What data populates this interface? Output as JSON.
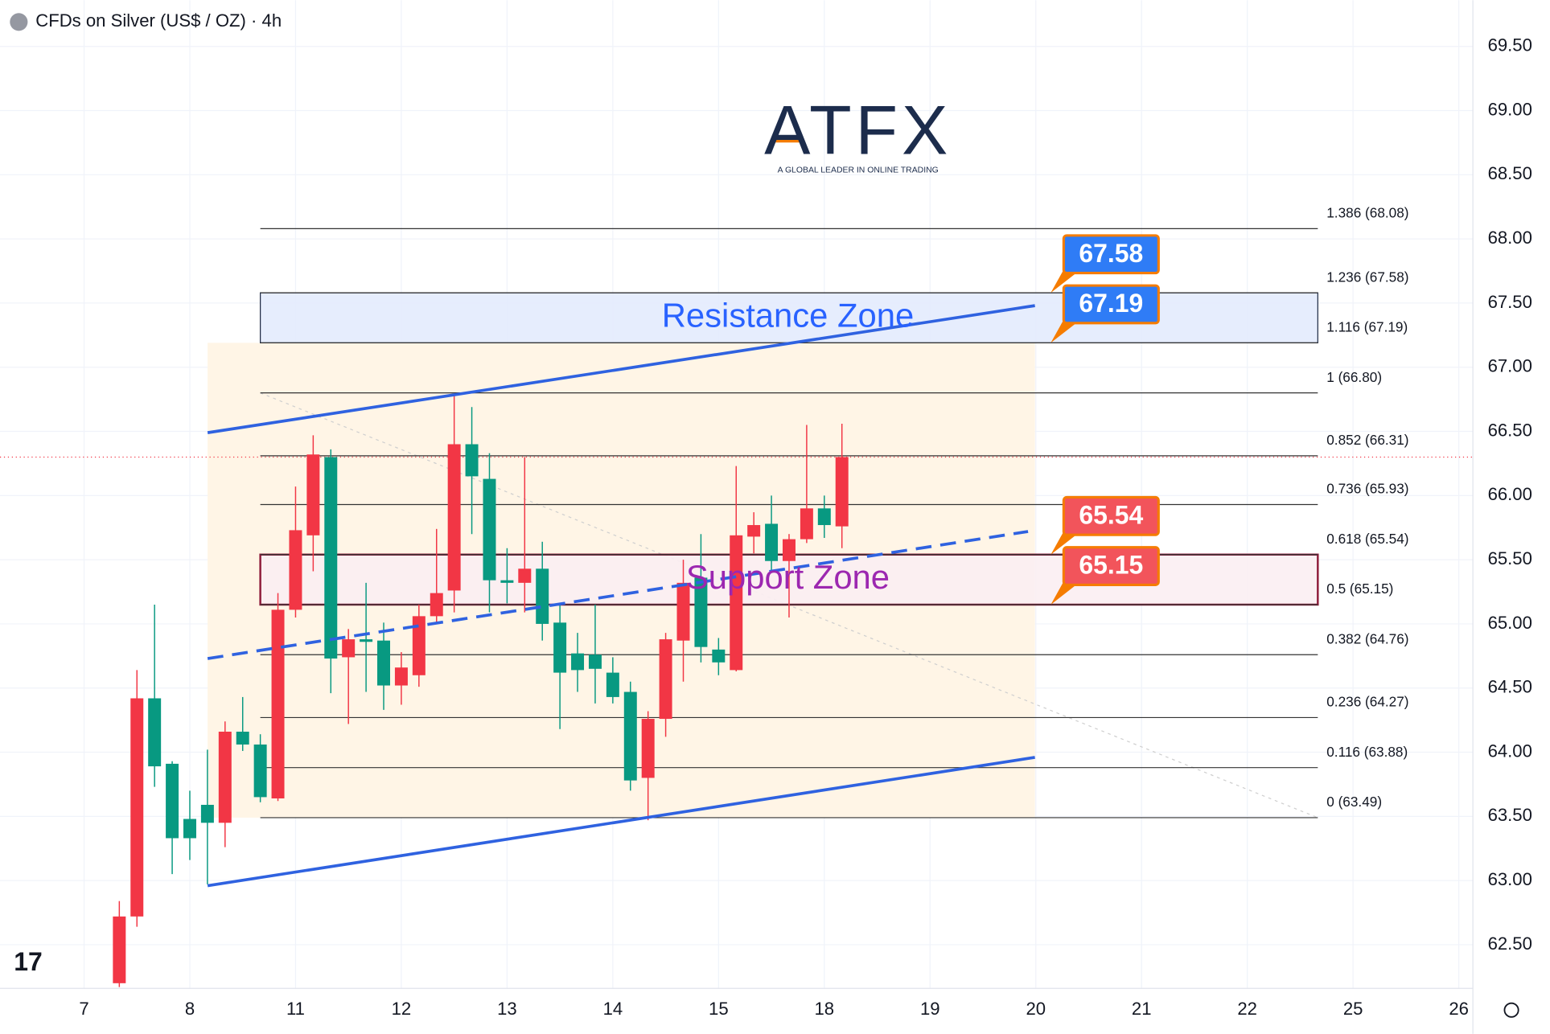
{
  "chart_data": {
    "type": "candlestick",
    "title": "CFDs on Silver (US$ / OZ) · 4h",
    "logo": {
      "name": "ATFX",
      "tagline": "A GLOBAL LEADER IN ONLINE TRADING"
    },
    "x": [
      2,
      3,
      4,
      5,
      6,
      7,
      8,
      9,
      10,
      11,
      12,
      13,
      14,
      15,
      16,
      17,
      18,
      19,
      20,
      21,
      22,
      23,
      24,
      25,
      26,
      27,
      28,
      29,
      30,
      31,
      32,
      33,
      34,
      35,
      36,
      37,
      38,
      39,
      40,
      41,
      42,
      43
    ],
    "open": [
      62.2,
      62.72,
      64.42,
      63.91,
      63.48,
      63.59,
      63.45,
      64.16,
      64.06,
      63.64,
      65.11,
      65.69,
      66.3,
      64.74,
      64.88,
      64.87,
      64.52,
      64.6,
      65.06,
      65.26,
      66.4,
      66.13,
      65.34,
      65.32,
      65.43,
      65.01,
      64.77,
      64.76,
      64.62,
      64.47,
      63.8,
      64.26,
      64.87,
      65.36,
      64.8,
      64.64,
      65.68,
      65.78,
      65.49,
      65.66,
      65.9,
      65.76
    ],
    "high": [
      62.84,
      64.64,
      65.15,
      63.93,
      63.7,
      64.02,
      64.24,
      64.43,
      64.14,
      65.24,
      66.07,
      66.47,
      66.36,
      64.96,
      65.32,
      65.01,
      64.78,
      65.15,
      65.74,
      66.78,
      66.69,
      66.33,
      65.59,
      66.3,
      65.64,
      65.15,
      64.93,
      65.15,
      64.74,
      64.55,
      64.32,
      64.93,
      65.5,
      65.7,
      64.89,
      66.23,
      65.87,
      66.0,
      65.7,
      66.55,
      66.0,
      66.56
    ],
    "low": [
      62.17,
      62.64,
      63.73,
      63.05,
      63.16,
      62.97,
      63.26,
      64.01,
      63.61,
      63.62,
      65.05,
      65.41,
      64.46,
      64.22,
      64.47,
      64.33,
      64.37,
      64.51,
      65.01,
      65.09,
      65.7,
      65.09,
      65.16,
      65.09,
      64.87,
      64.18,
      64.47,
      64.38,
      64.38,
      63.7,
      63.47,
      64.12,
      64.55,
      64.7,
      64.6,
      64.63,
      65.55,
      65.41,
      65.05,
      65.63,
      65.67,
      65.59
    ],
    "close": [
      62.72,
      64.42,
      63.89,
      63.33,
      63.33,
      63.45,
      64.16,
      64.06,
      63.65,
      65.11,
      65.73,
      66.32,
      64.73,
      64.88,
      64.86,
      64.52,
      64.66,
      65.06,
      65.24,
      66.4,
      66.15,
      65.34,
      65.32,
      65.43,
      65.0,
      64.62,
      64.64,
      64.65,
      64.43,
      63.78,
      64.26,
      64.88,
      65.32,
      64.82,
      64.7,
      65.69,
      65.77,
      65.49,
      65.66,
      65.9,
      65.77,
      66.3
    ],
    "up_color": "#f23645",
    "down_color": "#089981",
    "xlim": [
      -4.77,
      78.8
    ],
    "xticks": [
      {
        "value": 0,
        "label": "7"
      },
      {
        "value": 6,
        "label": "8"
      },
      {
        "value": 12,
        "label": "11"
      },
      {
        "value": 18,
        "label": "12"
      },
      {
        "value": 24,
        "label": "13"
      },
      {
        "value": 30,
        "label": "14"
      },
      {
        "value": 36,
        "label": "15"
      },
      {
        "value": 42,
        "label": "18"
      },
      {
        "value": 48,
        "label": "19"
      },
      {
        "value": 54,
        "label": "20"
      },
      {
        "value": 60,
        "label": "21"
      },
      {
        "value": 66,
        "label": "22"
      },
      {
        "value": 72,
        "label": "25"
      },
      {
        "value": 78,
        "label": "26"
      }
    ],
    "ylim": [
      62.16,
      69.86
    ],
    "yticks": [
      {
        "value": 62.5,
        "label": "62.50"
      },
      {
        "value": 63,
        "label": "63.00"
      },
      {
        "value": 63.5,
        "label": "63.50"
      },
      {
        "value": 64,
        "label": "64.00"
      },
      {
        "value": 64.5,
        "label": "64.50"
      },
      {
        "value": 65,
        "label": "65.00"
      },
      {
        "value": 65.5,
        "label": "65.50"
      },
      {
        "value": 66,
        "label": "66.00"
      },
      {
        "value": 66.5,
        "label": "66.50"
      },
      {
        "value": 67,
        "label": "67.00"
      },
      {
        "value": 67.5,
        "label": "67.50"
      },
      {
        "value": 68,
        "label": "68.00"
      },
      {
        "value": 68.5,
        "label": "68.50"
      },
      {
        "value": 69,
        "label": "69.00"
      },
      {
        "value": 69.5,
        "label": "69.50"
      }
    ],
    "grid": true,
    "fib_range": {
      "x": [
        10,
        70
      ]
    },
    "fib_levels": [
      {
        "label": "1.386 (68.08)",
        "value": 68.08
      },
      {
        "label": "1.236 (67.58)",
        "value": 67.58
      },
      {
        "label": "1.116 (67.19)",
        "value": 67.19
      },
      {
        "label": "1 (66.80)",
        "value": 66.8
      },
      {
        "label": "0.852 (66.31)",
        "value": 66.31
      },
      {
        "label": "0.736 (65.93)",
        "value": 65.93
      },
      {
        "label": "0.618 (65.54)",
        "value": 65.54
      },
      {
        "label": "0.5 (65.15)",
        "value": 65.15
      },
      {
        "label": "0.382 (64.76)",
        "value": 64.76
      },
      {
        "label": "0.236 (64.27)",
        "value": 64.27
      },
      {
        "label": "0.116 (63.88)",
        "value": 63.88
      },
      {
        "label": "0 (63.49)",
        "value": 63.49
      }
    ],
    "zones": [
      {
        "label": "Resistance Zone",
        "low": 67.19,
        "high": 67.58,
        "color": "#2962ff",
        "fill": "#e3ebfd",
        "border": "#1e2a44"
      },
      {
        "label": "Support Zone",
        "low": 65.15,
        "high": 65.54,
        "color": "#9c27b0",
        "fill": "#fbeef2",
        "border": "#8e1b3a"
      }
    ],
    "price_tags": [
      {
        "value": 67.58,
        "color": "#2f7cf6"
      },
      {
        "value": 67.19,
        "color": "#2f7cf6"
      },
      {
        "value": 65.54,
        "color": "#f2545b"
      },
      {
        "value": 65.15,
        "color": "#f2545b"
      }
    ],
    "trend_lines": [
      {
        "x": [
          7.01,
          53.95
        ],
        "y": [
          66.49,
          67.48
        ],
        "color": "#2f62e0",
        "dashed": false
      },
      {
        "x": [
          7.01,
          53.95
        ],
        "y": [
          62.96,
          63.96
        ],
        "color": "#2f62e0",
        "dashed": false
      },
      {
        "x": [
          7.01,
          53.56
        ],
        "y": [
          64.73,
          65.72
        ],
        "color": "#2f62e0",
        "dashed": true
      }
    ]
  }
}
